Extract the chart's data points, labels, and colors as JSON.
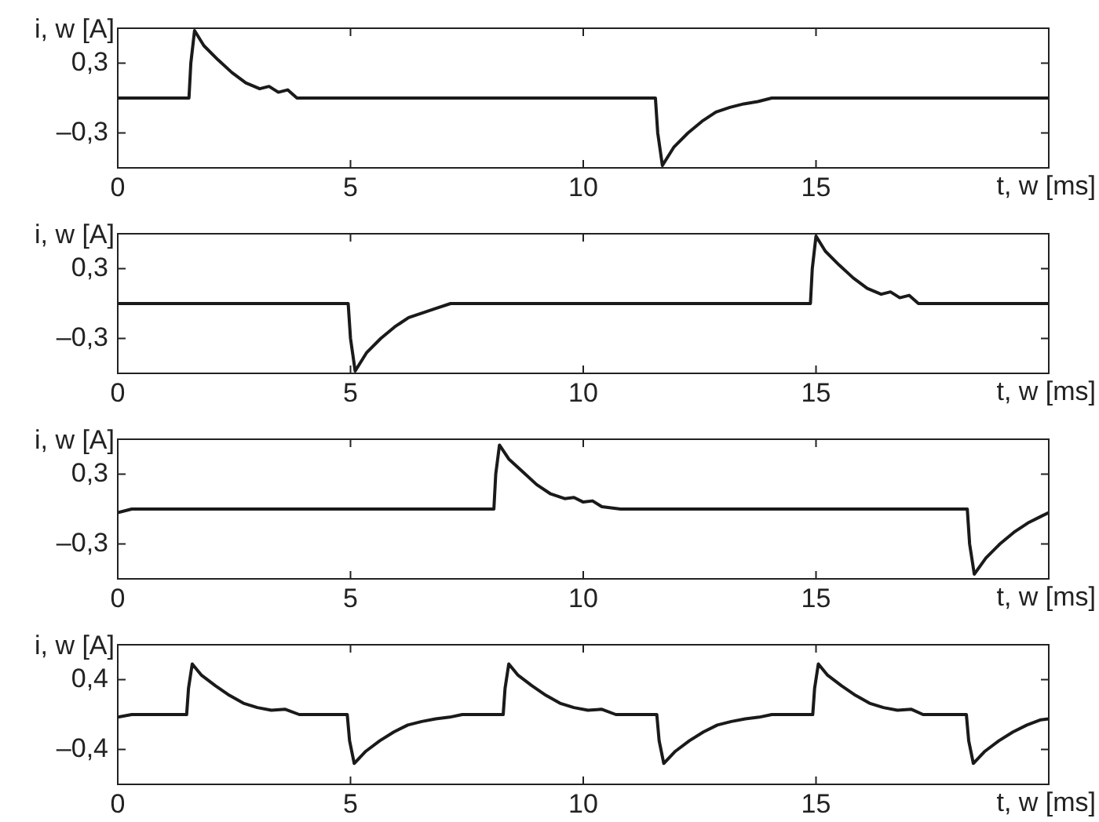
{
  "chart_data": [
    {
      "type": "line",
      "xlabel": "t, w [ms]",
      "ylabel": "i, w [A]",
      "xlim": [
        0,
        20
      ],
      "xticks": [
        0,
        5,
        10,
        15
      ],
      "ylim": [
        -0.6,
        0.6
      ],
      "yticks": [
        {
          "value": -0.3,
          "label": "–0,3"
        },
        {
          "value": 0.3,
          "label": "0,3"
        }
      ],
      "marker": "none",
      "line_style": "solid",
      "legend": false,
      "series": [
        {
          "color": "#1a1a1a",
          "x": [
            0,
            1.53,
            1.57,
            1.65,
            1.85,
            2.15,
            2.45,
            2.75,
            3.05,
            3.25,
            3.45,
            3.65,
            3.85,
            11.55,
            11.6,
            11.7,
            11.95,
            12.25,
            12.55,
            12.85,
            13.15,
            13.45,
            13.75,
            14.05,
            20
          ],
          "values": [
            0,
            0,
            0.3,
            0.58,
            0.45,
            0.33,
            0.22,
            0.13,
            0.08,
            0.1,
            0.05,
            0.07,
            0,
            0,
            -0.3,
            -0.58,
            -0.42,
            -0.3,
            -0.2,
            -0.12,
            -0.08,
            -0.05,
            -0.03,
            0,
            0
          ]
        }
      ]
    },
    {
      "type": "line",
      "xlabel": "t, w [ms]",
      "ylabel": "i, w [A]",
      "xlim": [
        0,
        20
      ],
      "xticks": [
        0,
        5,
        10,
        15
      ],
      "ylim": [
        -0.6,
        0.6
      ],
      "yticks": [
        {
          "value": -0.3,
          "label": "–0,3"
        },
        {
          "value": 0.3,
          "label": "0,3"
        }
      ],
      "marker": "none",
      "line_style": "solid",
      "legend": false,
      "series": [
        {
          "color": "#1a1a1a",
          "x": [
            0,
            4.95,
            5.0,
            5.1,
            5.35,
            5.65,
            5.95,
            6.25,
            6.55,
            6.85,
            7.15,
            14.88,
            14.92,
            15.0,
            15.2,
            15.5,
            15.8,
            16.1,
            16.4,
            16.6,
            16.8,
            17.0,
            17.2,
            20
          ],
          "values": [
            0,
            0,
            -0.3,
            -0.58,
            -0.42,
            -0.3,
            -0.2,
            -0.12,
            -0.08,
            -0.04,
            0,
            0,
            0.3,
            0.58,
            0.45,
            0.33,
            0.22,
            0.13,
            0.08,
            0.1,
            0.05,
            0.07,
            0,
            0
          ]
        }
      ]
    },
    {
      "type": "line",
      "xlabel": "t, w [ms]",
      "ylabel": "i, w [A]",
      "xlim": [
        0,
        20
      ],
      "xticks": [
        0,
        5,
        10,
        15
      ],
      "ylim": [
        -0.6,
        0.6
      ],
      "yticks": [
        {
          "value": -0.3,
          "label": "–0,3"
        },
        {
          "value": 0.3,
          "label": "0,3"
        }
      ],
      "marker": "none",
      "line_style": "solid",
      "legend": false,
      "series": [
        {
          "color": "#1a1a1a",
          "x": [
            0,
            0.3,
            8.08,
            8.12,
            8.2,
            8.4,
            8.7,
            9.0,
            9.3,
            9.6,
            9.8,
            10.0,
            10.2,
            10.4,
            10.8,
            18.25,
            18.3,
            18.4,
            18.65,
            18.95,
            19.25,
            19.55,
            19.85,
            20
          ],
          "values": [
            -0.03,
            0,
            0,
            0.3,
            0.55,
            0.43,
            0.32,
            0.21,
            0.13,
            0.09,
            0.1,
            0.06,
            0.07,
            0.02,
            0,
            0,
            -0.3,
            -0.56,
            -0.42,
            -0.3,
            -0.2,
            -0.12,
            -0.06,
            -0.03
          ]
        }
      ]
    },
    {
      "type": "line",
      "xlabel": "t, w [ms]",
      "ylabel": "i, w [A]",
      "xlim": [
        0,
        20
      ],
      "xticks": [
        0,
        5,
        10,
        15
      ],
      "ylim": [
        -0.8,
        0.8
      ],
      "yticks": [
        {
          "value": -0.4,
          "label": "–0,4"
        },
        {
          "value": 0.4,
          "label": "0,4"
        }
      ],
      "marker": "none",
      "line_style": "solid",
      "legend": false,
      "series": [
        {
          "color": "#1a1a1a",
          "x": [
            0,
            0.3,
            1.48,
            1.52,
            1.6,
            1.8,
            2.1,
            2.4,
            2.7,
            3.0,
            3.3,
            3.6,
            3.9,
            4.93,
            4.98,
            5.08,
            5.33,
            5.63,
            5.93,
            6.23,
            6.53,
            6.83,
            7.13,
            7.4,
            8.28,
            8.32,
            8.4,
            8.6,
            8.9,
            9.2,
            9.5,
            9.8,
            10.1,
            10.4,
            10.7,
            11.58,
            11.63,
            11.73,
            11.98,
            12.28,
            12.58,
            12.88,
            13.18,
            13.48,
            13.78,
            14.05,
            14.93,
            14.97,
            15.05,
            15.25,
            15.55,
            15.85,
            16.15,
            16.45,
            16.75,
            17.05,
            17.3,
            18.23,
            18.28,
            18.38,
            18.63,
            18.93,
            19.23,
            19.53,
            19.83,
            20
          ],
          "values": [
            -0.03,
            0,
            0,
            0.3,
            0.58,
            0.45,
            0.33,
            0.22,
            0.13,
            0.08,
            0.05,
            0.06,
            0,
            0,
            -0.3,
            -0.56,
            -0.42,
            -0.3,
            -0.2,
            -0.12,
            -0.08,
            -0.05,
            -0.03,
            0,
            0,
            0.3,
            0.58,
            0.45,
            0.33,
            0.22,
            0.13,
            0.08,
            0.05,
            0.06,
            0,
            0,
            -0.3,
            -0.56,
            -0.42,
            -0.3,
            -0.2,
            -0.12,
            -0.08,
            -0.05,
            -0.03,
            0,
            0,
            0.3,
            0.58,
            0.45,
            0.33,
            0.22,
            0.13,
            0.08,
            0.05,
            0.06,
            0,
            0,
            -0.3,
            -0.56,
            -0.42,
            -0.3,
            -0.2,
            -0.12,
            -0.06,
            -0.05
          ]
        }
      ]
    }
  ]
}
